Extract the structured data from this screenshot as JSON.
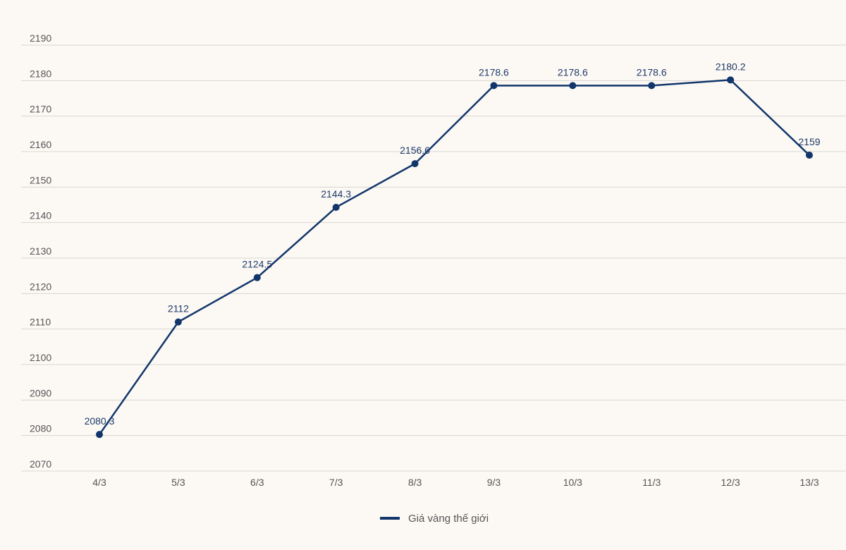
{
  "chart_data": {
    "type": "line",
    "title": "",
    "xlabel": "",
    "ylabel": "",
    "categories": [
      "4/3",
      "5/3",
      "6/3",
      "7/3",
      "8/3",
      "9/3",
      "10/3",
      "11/3",
      "12/3",
      "13/3"
    ],
    "series": [
      {
        "name": "Giá vàng thế giới",
        "values": [
          2080.3,
          2112,
          2124.5,
          2144.3,
          2156.6,
          2178.6,
          2178.6,
          2178.6,
          2180.2,
          2159
        ],
        "labels": [
          "2080.3",
          "2112",
          "2124.5",
          "2144.3",
          "2156.6",
          "2178.6",
          "2178.6",
          "2178.6",
          "2180.2",
          "2159"
        ],
        "color": "#12366b"
      }
    ],
    "yticks": [
      "2070",
      "2080",
      "2090",
      "2100",
      "2110",
      "2120",
      "2130",
      "2140",
      "2150",
      "2160",
      "2170",
      "2180",
      "2190"
    ],
    "ylim": [
      2070,
      2190
    ],
    "grid": true,
    "legend": "bottom-center"
  }
}
